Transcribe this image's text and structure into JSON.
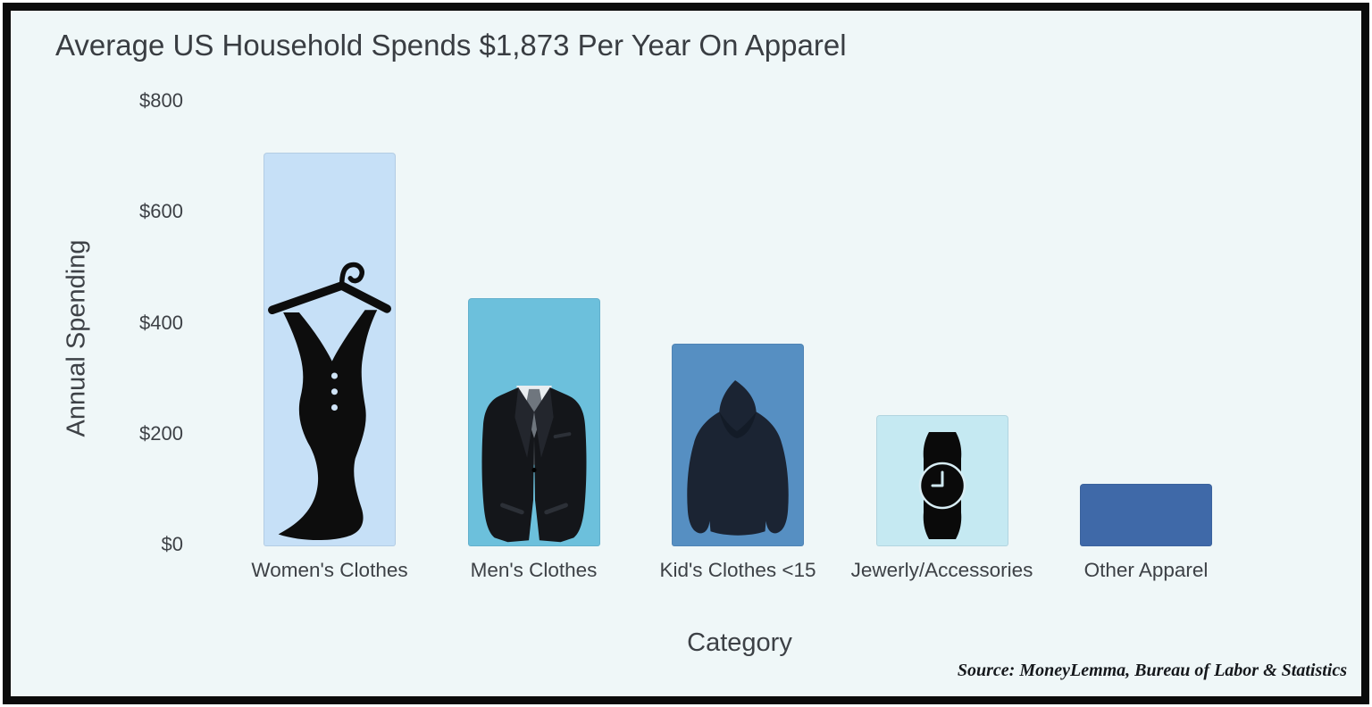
{
  "source_note": "Source: MoneyLemma, Bureau of Labor & Statistics",
  "colors": {
    "frame_border": "#0b0b0b",
    "background": "#eff7f8",
    "text": "#3d4146"
  },
  "chart_data": {
    "type": "bar",
    "title": "Average US Household Spends $1,873 Per Year On Apparel",
    "xlabel": "Category",
    "ylabel": "Annual Spending",
    "ylim": [
      0,
      800
    ],
    "grid": false,
    "legend": "none",
    "yticks": [
      "$0",
      "$200",
      "$400",
      "$600",
      "$800"
    ],
    "ytick_values": [
      0,
      200,
      400,
      600,
      800
    ],
    "categories": [
      "Women's Clothes",
      "Men's Clothes",
      "Kid's Clothes <15",
      "Jewerly/Accessories",
      "Other Apparel"
    ],
    "values": [
      710,
      448,
      366,
      236,
      113
    ],
    "bar_colors": [
      "#c6e0f7",
      "#6cc0dc",
      "#568fc2",
      "#c5e9f2",
      "#3f69a8"
    ],
    "icons": [
      "dress-hanger-icon",
      "suit-icon",
      "hoodie-icon",
      "wristwatch-icon",
      null
    ]
  }
}
